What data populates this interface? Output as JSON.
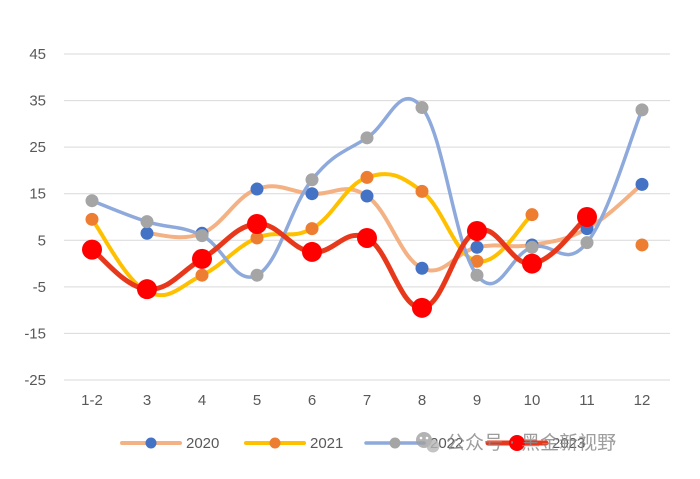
{
  "chart_data": {
    "type": "line",
    "title": "",
    "xlabel": "",
    "ylabel": "",
    "categories": [
      "1-2",
      "3",
      "4",
      "5",
      "6",
      "7",
      "8",
      "9",
      "10",
      "11",
      "12"
    ],
    "ylim": [
      -25,
      45
    ],
    "yticks": [
      45,
      35,
      25,
      15,
      5,
      -5,
      -15,
      -25
    ],
    "grid": true,
    "legend_position": "bottom",
    "series": [
      {
        "name": "2020",
        "line_color": "#F4B183",
        "marker_color": "#4472C4",
        "values": [
          null,
          6.5,
          6.5,
          16,
          15,
          14.5,
          -1,
          3.5,
          4,
          7.5,
          17
        ]
      },
      {
        "name": "2021",
        "line_color": "#FFC000",
        "marker_color": "#ED7D31",
        "values": [
          9.5,
          -6,
          -2.5,
          5.5,
          7.5,
          18.5,
          15.5,
          0.5,
          10.5,
          null,
          4
        ]
      },
      {
        "name": "2022",
        "line_color": "#8EA9DB",
        "marker_color": "#A5A5A5",
        "values": [
          13.5,
          9,
          6,
          -2.5,
          18,
          27,
          33.5,
          -2.5,
          3.5,
          4.5,
          33
        ]
      },
      {
        "name": "2023",
        "line_color": "#E8381B",
        "marker_color": "#FF0000",
        "values": [
          3,
          -5.5,
          1,
          8.5,
          2.5,
          5.5,
          -9.5,
          7,
          0,
          10,
          null
        ]
      }
    ]
  },
  "watermark": {
    "text": "公众号 · 黑金新视野",
    "icon": "wechat-icon"
  }
}
